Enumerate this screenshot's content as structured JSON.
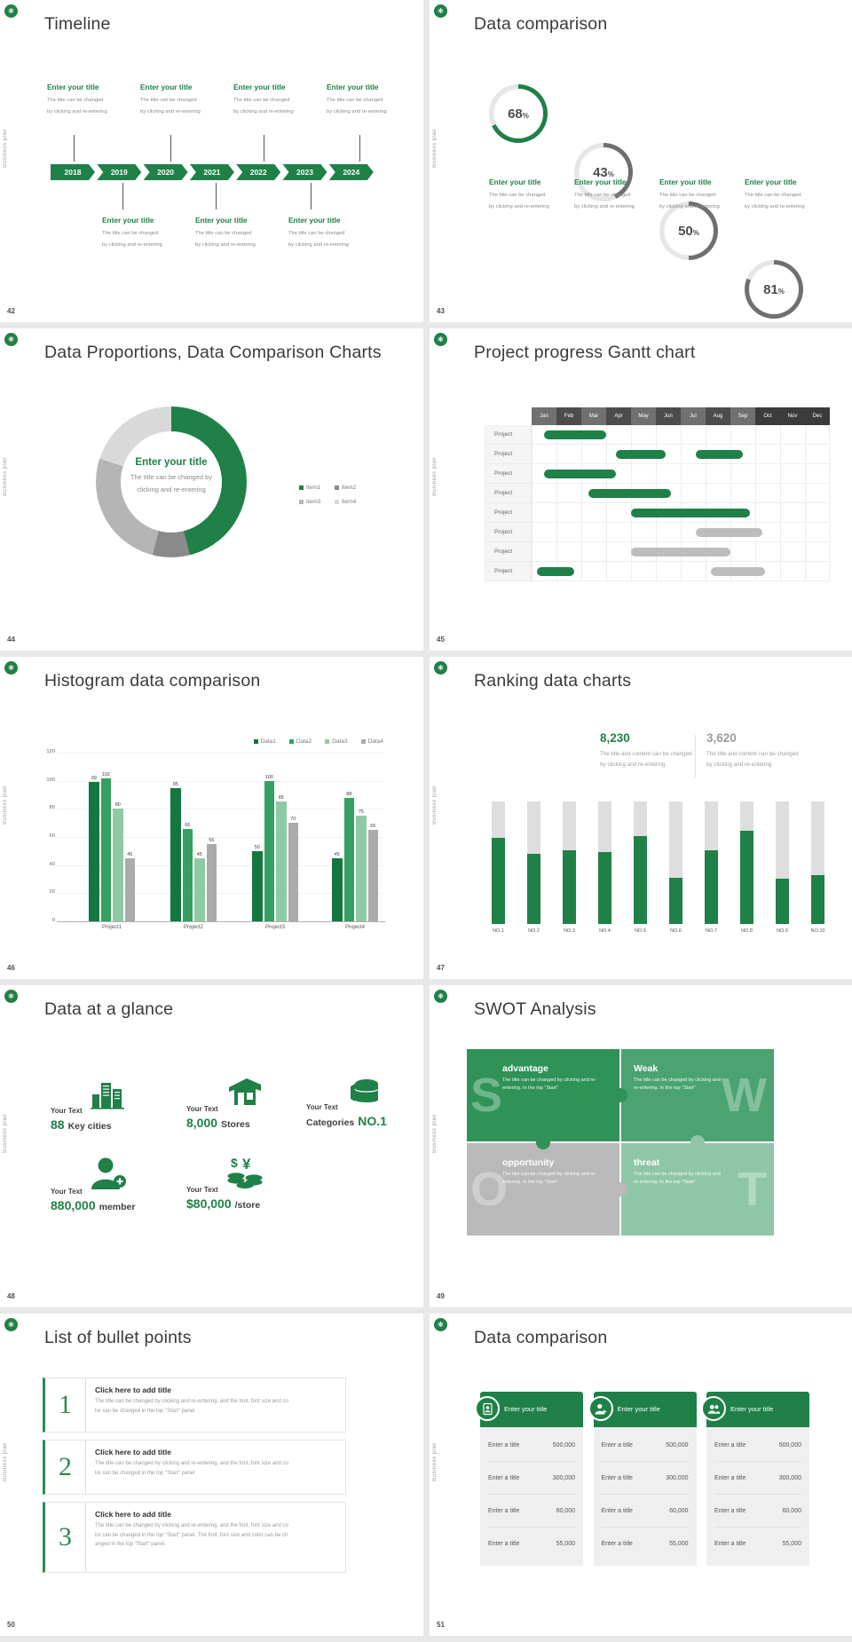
{
  "common": {
    "vertical_label": "Business plan",
    "corner_icon": "leaf-badge-icon"
  },
  "colors": {
    "green": "#1f8048",
    "green_dark": "#14773f",
    "green_mid": "#35a061",
    "green_light": "#8fc9a6",
    "gray_bar": "#ababab",
    "gray_arc": "#6f6f6f",
    "ring_track": "#e6e6e6"
  },
  "slides": {
    "timeline": {
      "number": "42",
      "title": "Timeline",
      "entry_title": "Enter your title",
      "entry_body_lines": [
        "The title can be changed",
        "by clicking and re-entering"
      ],
      "years": [
        "2018",
        "2019",
        "2020",
        "2021",
        "2022",
        "2023",
        "2024"
      ]
    },
    "rings": {
      "number": "43",
      "title": "Data comparison",
      "unit": "%",
      "entry_title": "Enter your title",
      "entry_body_lines": [
        "The title can be changed",
        "by clicking and re-entering"
      ],
      "items": [
        {
          "value": "68",
          "pct": 68,
          "arc": "#1f8048"
        },
        {
          "value": "43",
          "pct": 43,
          "arc": "#6f6f6f"
        },
        {
          "value": "50",
          "pct": 50,
          "arc": "#6f6f6f"
        },
        {
          "value": "81",
          "pct": 81,
          "arc": "#6f6f6f"
        }
      ]
    },
    "donut": {
      "number": "44",
      "title": "Data Proportions, Data Comparison Charts",
      "center_title": "Enter your title",
      "center_body_lines": [
        "The title can be changed by",
        "clicking and re-entering"
      ],
      "legend": [
        {
          "label": "Item1",
          "color": "#1f8048"
        },
        {
          "label": "Item2",
          "color": "#8a8a8a"
        },
        {
          "label": "Item3",
          "color": "#b5b5b5"
        },
        {
          "label": "Item4",
          "color": "#d9d9d9"
        }
      ],
      "segments_pct": [
        46,
        8,
        26,
        20
      ]
    },
    "gantt": {
      "number": "45",
      "title": "Project progress Gantt chart",
      "months": [
        "Jan",
        "Feb",
        "Mar",
        "Apr",
        "May",
        "Jun",
        "Jul",
        "Aug",
        "Sep",
        "Oct",
        "Nov",
        "Dec"
      ],
      "row_label": "Project",
      "rows": [
        [
          {
            "s": 0.5,
            "e": 3.0,
            "c": "green"
          }
        ],
        [
          {
            "s": 3.4,
            "e": 5.4,
            "c": "green"
          },
          {
            "s": 6.6,
            "e": 8.5,
            "c": "green"
          }
        ],
        [
          {
            "s": 0.5,
            "e": 3.4,
            "c": "green"
          }
        ],
        [
          {
            "s": 2.3,
            "e": 5.6,
            "c": "green"
          }
        ],
        [
          {
            "s": 4.0,
            "e": 8.8,
            "c": "green"
          }
        ],
        [
          {
            "s": 6.6,
            "e": 9.3,
            "c": "gray"
          }
        ],
        [
          {
            "s": 4.0,
            "e": 8.0,
            "c": "gray"
          }
        ],
        [
          {
            "s": 0.2,
            "e": 1.7,
            "c": "green"
          },
          {
            "s": 7.2,
            "e": 9.4,
            "c": "gray"
          }
        ]
      ]
    },
    "histogram": {
      "number": "46",
      "title": "Histogram data comparison",
      "legend": [
        "Data1",
        "Data2",
        "Data3",
        "Data4"
      ],
      "series_colors": [
        "#14773f",
        "#35a061",
        "#8fc9a6",
        "#ababab"
      ],
      "categories": [
        "Project1",
        "Project2",
        "Project3",
        "Project4"
      ],
      "series": [
        {
          "name": "Data1",
          "values": [
            99,
            95,
            50,
            45
          ]
        },
        {
          "name": "Data2",
          "values": [
            102,
            66,
            100,
            88
          ]
        },
        {
          "name": "Data3",
          "values": [
            80,
            45,
            85,
            75
          ]
        },
        {
          "name": "Data4",
          "values": [
            45,
            55,
            70,
            65
          ]
        }
      ],
      "y_ticks": [
        0,
        20,
        40,
        60,
        80,
        100,
        120
      ],
      "y_max": 120
    },
    "ranking": {
      "number": "47",
      "title": "Ranking data charts",
      "stats": [
        {
          "value": "8,230",
          "color": "#1f8048",
          "body_lines": [
            "The title and content can be changed",
            "by clicking and re-entering"
          ]
        },
        {
          "value": "3,620",
          "color": "#9b9b9b",
          "body_lines": [
            "The title and content can be changed",
            "by clicking and re-entering"
          ]
        }
      ],
      "bar_labels": [
        "NO.1",
        "NO.2",
        "NO.3",
        "NO.4",
        "NO.5",
        "NO.6",
        "NO.7",
        "NO.8",
        "NO.9",
        "NO.10"
      ],
      "bar_fills": [
        0.7,
        0.57,
        0.6,
        0.59,
        0.72,
        0.38,
        0.6,
        0.76,
        0.37,
        0.4
      ]
    },
    "glance": {
      "number": "48",
      "title": "Data at a glance",
      "stats": [
        {
          "label": "Your Text",
          "icon": "city-buildings-icon",
          "parts": [
            {
              "t": "88",
              "green": true
            },
            {
              "t": "Key cities",
              "green": false
            }
          ]
        },
        {
          "label": "Your Text",
          "icon": "store-icon",
          "parts": [
            {
              "t": "8,000",
              "green": true
            },
            {
              "t": "Stores",
              "green": false
            }
          ]
        },
        {
          "label": "Your Text",
          "icon": "category-drum-icon",
          "parts": [
            {
              "t": "Categories",
              "green": false
            },
            {
              "t": "NO.1",
              "green": true
            }
          ]
        },
        {
          "label": "Your Text",
          "icon": "member-add-icon",
          "parts": [
            {
              "t": "880,000",
              "green": true
            },
            {
              "t": "member",
              "green": false
            }
          ]
        },
        {
          "label": "Your Text",
          "icon": "coins-icon",
          "parts": [
            {
              "t": "$80,000",
              "green": true
            },
            {
              "t": "/store",
              "green": false
            }
          ]
        }
      ]
    },
    "swot": {
      "number": "49",
      "title": "SWOT Analysis",
      "quadrants": [
        {
          "letter": "S",
          "heading": "advantage",
          "color": "#2f9257",
          "letter_side": "left",
          "body": "The title can be changed by clicking and re-entering. In the top \"Start\""
        },
        {
          "letter": "W",
          "heading": "Weak",
          "color": "#4aa371",
          "letter_side": "right",
          "body": "The title can be changed by clicking and re-entering. In the top \"Start\""
        },
        {
          "letter": "O",
          "heading": "opportunity",
          "color": "#b9b9b9",
          "letter_side": "left",
          "body": "The title can be changed by clicking and re-entering. In the top \"Start\""
        },
        {
          "letter": "T",
          "heading": "threat",
          "color": "#90c6a8",
          "letter_side": "right",
          "body": "The title can be changed by clicking and re-entering. In the top \"Start\""
        }
      ]
    },
    "bullets": {
      "number": "50",
      "title": "List of bullet points",
      "item_title": "Click here to add title",
      "items": [
        {
          "num": "1",
          "lines": [
            "The title can be changed by clicking and re-entering, and the font, font size and co",
            "lor can be changed in the top \"Start\" panel"
          ]
        },
        {
          "num": "2",
          "lines": [
            "The title can be changed by clicking and re-entering, and the font, font size and co",
            "lor can be changed in the top \"Start\" panel"
          ]
        },
        {
          "num": "3",
          "lines": [
            "The title can be changed by clicking and re-entering, and the font, font size and co",
            "lor can be changed in the top \"Start\" panel. The font, font size and color can be ch",
            "anged in the top \"Start\" panel."
          ]
        }
      ]
    },
    "tables": {
      "number": "51",
      "title": "Data comparison",
      "cards": [
        {
          "header": "Enter your title",
          "icon": "id-badge-icon",
          "rows": [
            [
              "Enter a title",
              "500,000"
            ],
            [
              "Enter a title",
              "300,000"
            ],
            [
              "Enter a title",
              "60,000"
            ],
            [
              "Enter a title",
              "55,000"
            ]
          ]
        },
        {
          "header": "Enter your title",
          "icon": "person-add-icon",
          "rows": [
            [
              "Enter a title",
              "500,000"
            ],
            [
              "Enter a title",
              "300,000"
            ],
            [
              "Enter a title",
              "60,000"
            ],
            [
              "Enter a title",
              "55,000"
            ]
          ]
        },
        {
          "header": "Enter your title",
          "icon": "people-icon",
          "rows": [
            [
              "Enter a title",
              "500,000"
            ],
            [
              "Enter a title",
              "300,000"
            ],
            [
              "Enter a title",
              "60,000"
            ],
            [
              "Enter a title",
              "55,000"
            ]
          ]
        }
      ]
    }
  },
  "chart_data": [
    {
      "type": "pie",
      "title": "Data Proportions, Data Comparison Charts",
      "labels": [
        "Item1",
        "Item2",
        "Item3",
        "Item4"
      ],
      "values": [
        46,
        8,
        26,
        20
      ],
      "center_title": "Enter your title",
      "legend_position": "right"
    },
    {
      "type": "pie",
      "title": "Data comparison progress rings",
      "labels": [
        "68%",
        "43%",
        "50%",
        "81%"
      ],
      "values": [
        68,
        43,
        50,
        81
      ]
    },
    {
      "type": "bar",
      "title": "Histogram data comparison",
      "categories": [
        "Project1",
        "Project2",
        "Project3",
        "Project4"
      ],
      "series": [
        {
          "name": "Data1",
          "values": [
            99,
            95,
            50,
            45
          ]
        },
        {
          "name": "Data2",
          "values": [
            102,
            66,
            100,
            88
          ]
        },
        {
          "name": "Data3",
          "values": [
            80,
            45,
            85,
            75
          ]
        },
        {
          "name": "Data4",
          "values": [
            45,
            55,
            70,
            65
          ]
        }
      ],
      "xlabel": "",
      "ylabel": "",
      "ylim": [
        0,
        120
      ],
      "grid": true,
      "legend_position": "top-right"
    },
    {
      "type": "bar",
      "title": "Ranking data charts",
      "categories": [
        "NO.1",
        "NO.2",
        "NO.3",
        "NO.4",
        "NO.5",
        "NO.6",
        "NO.7",
        "NO.8",
        "NO.9",
        "NO.10"
      ],
      "values": [
        0.7,
        0.57,
        0.6,
        0.59,
        0.72,
        0.38,
        0.6,
        0.76,
        0.37,
        0.4
      ],
      "ylim": [
        0,
        1
      ],
      "annotations": [
        "8,230",
        "3,620"
      ]
    },
    {
      "type": "table",
      "title": "Project progress Gantt chart",
      "x": [
        "Jan",
        "Feb",
        "Mar",
        "Apr",
        "May",
        "Jun",
        "Jul",
        "Aug",
        "Sep",
        "Oct",
        "Nov",
        "Dec"
      ],
      "rows": [
        "Project",
        "Project",
        "Project",
        "Project",
        "Project",
        "Project",
        "Project",
        "Project"
      ]
    }
  ]
}
